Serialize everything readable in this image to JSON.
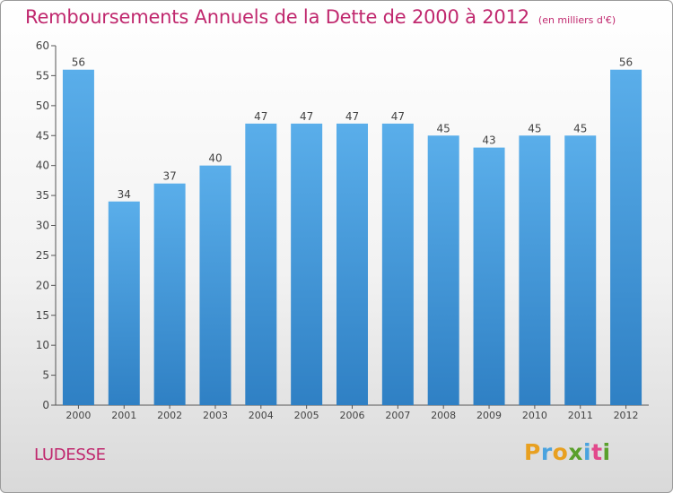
{
  "title": "Remboursements Annuels de la Dette de 2000 à 2012",
  "unit_note": "(en milliers d'€)",
  "commune": "LUDESSE",
  "brand": {
    "letters": [
      "P",
      "r",
      "o",
      "x",
      "i",
      "t",
      "i"
    ],
    "colors": [
      "#e8a020",
      "#4aa3df",
      "#e8a020",
      "#5aa02c",
      "#4aa3df",
      "#e24a8c",
      "#5aa02c"
    ]
  },
  "colors": {
    "bar": "#4a9ee0",
    "accent": "#c0286e",
    "axis": "#555555",
    "grid": "#bbbbbb"
  },
  "chart_data": {
    "type": "bar",
    "categories": [
      "2000",
      "2001",
      "2002",
      "2003",
      "2004",
      "2005",
      "2006",
      "2007",
      "2008",
      "2009",
      "2010",
      "2011",
      "2012"
    ],
    "values": [
      56,
      34,
      37,
      40,
      47,
      47,
      47,
      47,
      45,
      43,
      45,
      45,
      56
    ],
    "ylim": [
      0,
      60
    ],
    "yticks": [
      0,
      5,
      10,
      15,
      20,
      25,
      30,
      35,
      40,
      45,
      50,
      55,
      60
    ],
    "grid": false,
    "data_labels": true
  }
}
